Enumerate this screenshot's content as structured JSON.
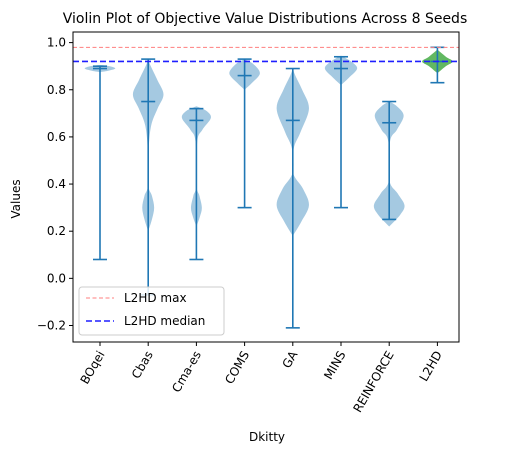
{
  "chart_data": {
    "type": "violin",
    "title": "Violin Plot of Objective Value Distributions Across 8 Seeds",
    "xlabel": "Dkitty",
    "ylabel": "Values",
    "ylim": [
      -0.27,
      1.045
    ],
    "yticks": [
      -0.2,
      0.0,
      0.2,
      0.4,
      0.6,
      0.8,
      1.0
    ],
    "ytick_labels": [
      "−0.2",
      "0.0",
      "0.2",
      "0.4",
      "0.6",
      "0.8",
      "1.0"
    ],
    "categories": [
      "BOqei",
      "Cbas",
      "Cma-es",
      "COMS",
      "GA",
      "MINS",
      "REINFORCE",
      "L2HD"
    ],
    "violins": [
      {
        "name": "BOqei",
        "min": 0.08,
        "max": 0.9,
        "median": 0.89,
        "color": "#1f77b4",
        "shape": [
          [
            0.875,
            0
          ],
          [
            0.88,
            0.45
          ],
          [
            0.89,
            0.9
          ],
          [
            0.9,
            0.55
          ],
          [
            0.905,
            0
          ]
        ]
      },
      {
        "name": "Cbas",
        "min": -0.07,
        "max": 0.93,
        "median": 0.75,
        "color": "#1f77b4",
        "shape": [
          [
            0.2,
            0
          ],
          [
            0.25,
            0.22
          ],
          [
            0.3,
            0.35
          ],
          [
            0.35,
            0.22
          ],
          [
            0.4,
            0
          ],
          [
            0.55,
            0.03
          ],
          [
            0.65,
            0.18
          ],
          [
            0.72,
            0.55
          ],
          [
            0.78,
            0.9
          ],
          [
            0.84,
            0.55
          ],
          [
            0.9,
            0.15
          ],
          [
            0.93,
            0
          ]
        ]
      },
      {
        "name": "Cma-es",
        "min": 0.08,
        "max": 0.72,
        "median": 0.67,
        "color": "#1f77b4",
        "shape": [
          [
            0.22,
            0
          ],
          [
            0.26,
            0.2
          ],
          [
            0.3,
            0.32
          ],
          [
            0.35,
            0.18
          ],
          [
            0.4,
            0
          ],
          [
            0.58,
            0.05
          ],
          [
            0.63,
            0.35
          ],
          [
            0.68,
            0.85
          ],
          [
            0.71,
            0.6
          ],
          [
            0.73,
            0
          ]
        ]
      },
      {
        "name": "COMS",
        "min": 0.3,
        "max": 0.93,
        "median": 0.86,
        "color": "#1f77b4",
        "shape": [
          [
            0.8,
            0
          ],
          [
            0.83,
            0.45
          ],
          [
            0.87,
            0.9
          ],
          [
            0.91,
            0.5
          ],
          [
            0.93,
            0
          ]
        ]
      },
      {
        "name": "GA",
        "min": -0.21,
        "max": 0.89,
        "median": 0.67,
        "color": "#1f77b4",
        "shape": [
          [
            0.18,
            0
          ],
          [
            0.24,
            0.5
          ],
          [
            0.31,
            0.95
          ],
          [
            0.38,
            0.6
          ],
          [
            0.45,
            0
          ],
          [
            0.55,
            0.05
          ],
          [
            0.62,
            0.45
          ],
          [
            0.72,
            0.95
          ],
          [
            0.8,
            0.55
          ],
          [
            0.86,
            0.15
          ],
          [
            0.89,
            0
          ]
        ]
      },
      {
        "name": "MINS",
        "min": 0.3,
        "max": 0.94,
        "median": 0.89,
        "color": "#1f77b4",
        "shape": [
          [
            0.82,
            0
          ],
          [
            0.85,
            0.45
          ],
          [
            0.89,
            0.95
          ],
          [
            0.92,
            0.6
          ],
          [
            0.945,
            0
          ]
        ]
      },
      {
        "name": "REINFORCE",
        "min": 0.25,
        "max": 0.75,
        "median": 0.66,
        "color": "#1f77b4",
        "shape": [
          [
            0.22,
            0
          ],
          [
            0.27,
            0.65
          ],
          [
            0.31,
            0.9
          ],
          [
            0.36,
            0.5
          ],
          [
            0.42,
            0
          ],
          [
            0.58,
            0.05
          ],
          [
            0.63,
            0.45
          ],
          [
            0.69,
            0.85
          ],
          [
            0.73,
            0.45
          ],
          [
            0.75,
            0
          ]
        ]
      },
      {
        "name": "L2HD",
        "min": 0.83,
        "max": 0.98,
        "median": 0.92,
        "color": "#2ca02c",
        "shape": [
          [
            0.87,
            0
          ],
          [
            0.9,
            0.5
          ],
          [
            0.92,
            0.9
          ],
          [
            0.94,
            0.5
          ],
          [
            0.97,
            0
          ]
        ]
      }
    ],
    "reference_lines": [
      {
        "label": "L2HD max",
        "value": 0.98,
        "color": "#ff7f7f",
        "style": "dashed"
      },
      {
        "label": "L2HD median",
        "value": 0.92,
        "color": "#1f1fff",
        "style": "dashed"
      }
    ],
    "legend": {
      "position": "lower-left",
      "entries": [
        "L2HD max",
        "L2HD median"
      ]
    }
  }
}
